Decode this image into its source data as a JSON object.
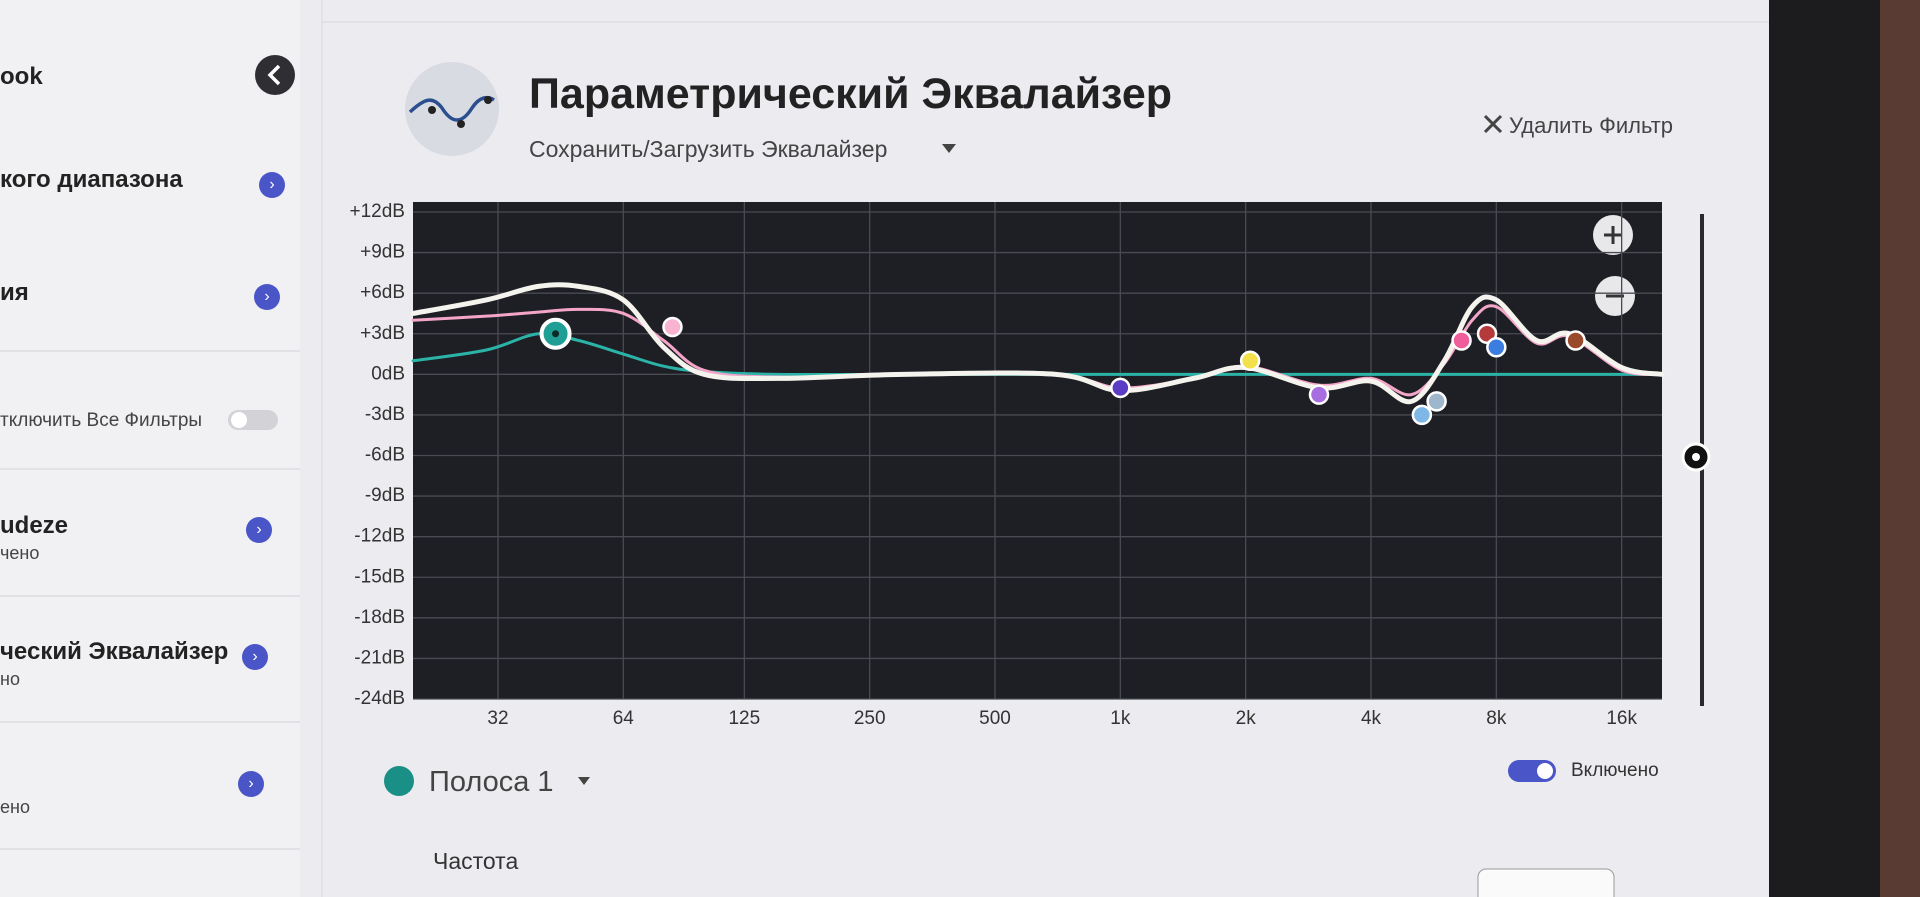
{
  "sidebar": {
    "items": [
      {
        "title": "ook"
      },
      {
        "title": "кого диапазона"
      },
      {
        "title": "ия"
      },
      {
        "title": "тключить Все Фильтры"
      },
      {
        "title": "udeze",
        "subtitle": "чено"
      },
      {
        "title": "ческий Эквалайзер",
        "subtitle": "но"
      },
      {
        "subtitle": "ено"
      }
    ]
  },
  "header": {
    "title": "Параметрический Эквалайзер",
    "subtitle": "Сохранить/Загрузить Эквалайзер",
    "action": "Удалить Фильтр"
  },
  "chart_data": {
    "type": "line",
    "log_x": true,
    "grid": true,
    "xlim": [
      20,
      20000
    ],
    "ylim": [
      -24,
      12
    ],
    "xticks": [
      32,
      64,
      {
        "value": 125,
        "label": "125"
      },
      250,
      500,
      {
        "value": 1000,
        "label": "1k"
      },
      {
        "value": 2000,
        "label": "2k"
      },
      {
        "value": 4000,
        "label": "4k"
      },
      {
        "value": 8000,
        "label": "8k"
      },
      {
        "value": 16000,
        "label": "16k"
      }
    ],
    "yticks": [
      {
        "value": 12,
        "label": "+12dB"
      },
      {
        "value": 9,
        "label": "+9dB"
      },
      {
        "value": 6,
        "label": "+6dB"
      },
      {
        "value": 3,
        "label": "+3dB"
      },
      {
        "value": 0,
        "label": "0dB"
      },
      {
        "value": -3,
        "label": "-3dB"
      },
      {
        "value": -6,
        "label": "-6dB"
      },
      {
        "value": -9,
        "label": "-9dB"
      },
      {
        "value": -12,
        "label": "-12dB"
      },
      {
        "value": -15,
        "label": "-15dB"
      },
      {
        "value": -18,
        "label": "-18dB"
      },
      {
        "value": -21,
        "label": "-21dB"
      },
      {
        "value": -24,
        "label": "-24dB"
      }
    ],
    "x": [
      20,
      30,
      40,
      50,
      64,
      80,
      100,
      150,
      300,
      700,
      1000,
      1500,
      2000,
      3000,
      4000,
      5000,
      6000,
      7000,
      8000,
      10000,
      12000,
      16000,
      20000
    ],
    "series": [
      {
        "color": "#2bb3a8",
        "values": [
          1,
          1.8,
          3,
          2.5,
          1.5,
          0.6,
          0.2,
          0,
          0,
          0,
          0,
          0,
          0,
          0,
          0,
          0,
          0,
          0,
          0,
          0,
          0,
          0,
          0
        ]
      },
      {
        "color": "#f4a6c9",
        "values": [
          4,
          4.3,
          4.6,
          4.8,
          4.5,
          2.5,
          0.3,
          -0.2,
          0,
          0,
          -1,
          -0.3,
          0.6,
          -0.8,
          -0.3,
          -1.5,
          0.8,
          4,
          5,
          2.3,
          2.8,
          0.3,
          0
        ]
      },
      {
        "color": "#f5f3ee",
        "values": [
          4.5,
          5.5,
          6.5,
          6.5,
          5.5,
          2,
          0,
          -0.3,
          0,
          0,
          -1.2,
          -0.3,
          0.5,
          -1,
          -0.5,
          -2,
          1,
          5,
          5.5,
          2.5,
          3,
          0.5,
          0
        ]
      }
    ],
    "points": [
      {
        "x": 44,
        "y": 3,
        "color": "#1f9e96"
      },
      {
        "x": 84,
        "y": 3.5,
        "color": "#f7b3cf"
      },
      {
        "x": 1000,
        "y": -1,
        "color": "#5b3cc4"
      },
      {
        "x": 2050,
        "y": 1,
        "color": "#f2e14a"
      },
      {
        "x": 3000,
        "y": -1.5,
        "color": "#a66ee0"
      },
      {
        "x": 5300,
        "y": -3,
        "color": "#7fb8e6"
      },
      {
        "x": 5750,
        "y": -2,
        "color": "#9fb7cc"
      },
      {
        "x": 6600,
        "y": 2.5,
        "color": "#ef5d9a"
      },
      {
        "x": 7600,
        "y": 3,
        "color": "#b53a3a"
      },
      {
        "x": 8000,
        "y": 2,
        "color": "#3b7de0"
      },
      {
        "x": 12400,
        "y": 2.5,
        "color": "#9a4a2a"
      }
    ]
  },
  "band": {
    "name": "Полоса 1",
    "toggle_label": "Включено",
    "field_label": "Частота"
  }
}
